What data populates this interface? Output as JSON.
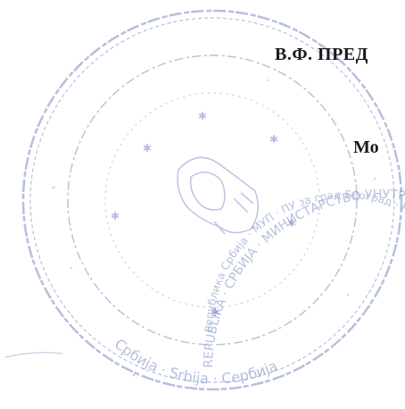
{
  "document": {
    "author_line": "В.Ф. ПРЕД",
    "place_line": "Мо"
  },
  "seal": {
    "outer_text": "Republika Srbija · Ministarstvo unutrašnjih poslova · Srbija",
    "inner_text": "Република Србија · МУП · ПУ за град Београд",
    "bottom_text": "Србија",
    "ink_color": "#7a8cc4"
  }
}
